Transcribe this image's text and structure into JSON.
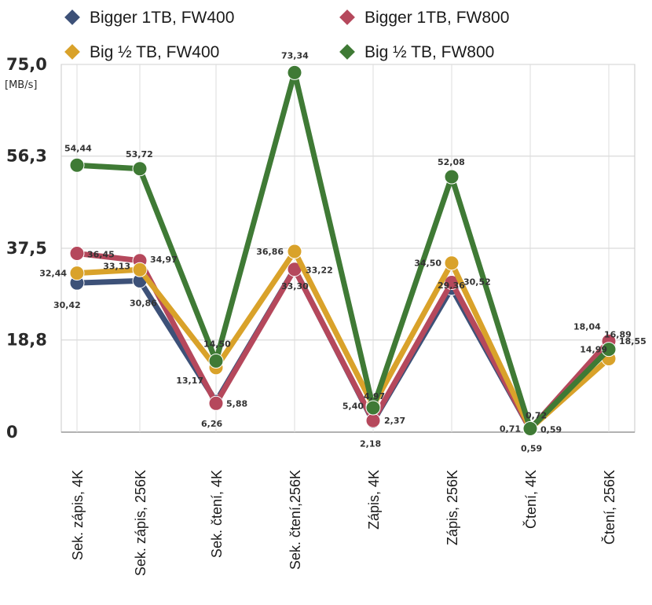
{
  "chart_data": {
    "type": "line",
    "categories": [
      "Sek. zápis, 4K",
      "Sek. zápis, 256K",
      "Sek. čtení, 4K",
      "Sek. čtení,256K",
      "Zápis, 4K",
      "Zápis, 256K",
      "Čtení, 4K",
      "Čtení, 256K"
    ],
    "ylabel": "[MB/s]",
    "ylim": [
      0,
      75.0
    ],
    "yticks": [
      "0",
      "18,8",
      "37,5",
      "56,3",
      "75,0"
    ],
    "ytick_values": [
      0,
      18.8,
      37.5,
      56.3,
      75.0
    ],
    "grid": true,
    "legend_position": "top",
    "series": [
      {
        "name": "Bigger 1TB, FW400",
        "color": "#3d5178",
        "values": [
          30.42,
          30.86,
          6.26,
          33.3,
          2.18,
          29.36,
          0.59,
          18.04
        ],
        "labels": [
          "30,42",
          "30,86",
          "6,26",
          "33,30",
          "2,18",
          "29,36",
          "0,59",
          "18,04"
        ]
      },
      {
        "name": "Bigger 1TB, FW800",
        "color": "#b5485c",
        "values": [
          36.45,
          34.97,
          5.88,
          33.22,
          2.37,
          30.52,
          0.59,
          18.55
        ],
        "labels": [
          "36,45",
          "34,97",
          "5,88",
          "33,22",
          "2,37",
          "30,52",
          "0,59",
          "18,55"
        ]
      },
      {
        "name": "Big ½ TB, FW400",
        "color": "#d9a22a",
        "values": [
          32.44,
          33.13,
          13.17,
          36.86,
          5.4,
          34.5,
          0.71,
          14.99
        ],
        "labels": [
          "32,44",
          "33,13",
          "13,17",
          "36,86",
          "5,40",
          "34,50",
          "0,71",
          "14,99"
        ]
      },
      {
        "name": "Big ½ TB, FW800",
        "color": "#3f7a35",
        "values": [
          54.44,
          53.72,
          14.5,
          73.34,
          4.97,
          52.08,
          0.72,
          16.89
        ],
        "labels": [
          "54,44",
          "53,72",
          "14,50",
          "73,34",
          "4,97",
          "52,08",
          "0,72",
          "16,89"
        ]
      }
    ]
  }
}
